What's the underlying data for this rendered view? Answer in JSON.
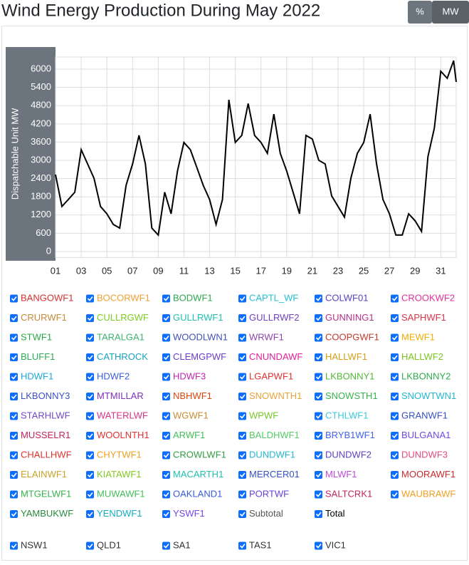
{
  "chart_data": {
    "type": "line",
    "title": "Wind Energy Production During May 2022",
    "toggle": [
      "%",
      "MW"
    ],
    "active_toggle": 1,
    "y_label": "Dispatchable Unit MW",
    "x": [
      1,
      1.5,
      2,
      2.5,
      3,
      3.5,
      4,
      4.5,
      5,
      5.5,
      6,
      6.5,
      7,
      7.5,
      8,
      8.5,
      9,
      9.5,
      10,
      10.5,
      11,
      11.5,
      12,
      12.5,
      13,
      13.5,
      14,
      14.5,
      15,
      15.5,
      16,
      16.5,
      17,
      17.5,
      18,
      18.5,
      19,
      19.5,
      20,
      20.5,
      21,
      21.5,
      22,
      22.5,
      23,
      23.5,
      24,
      24.5,
      25,
      25.5,
      26,
      26.5,
      27,
      27.5,
      28,
      28.5,
      29,
      29.5,
      30,
      30.5,
      31,
      31.5,
      32,
      32.2
    ],
    "series": [
      {
        "name": "Total",
        "color": "#000000",
        "values": [
          2530,
          1480,
          1710,
          1950,
          3350,
          2880,
          2410,
          1480,
          1240,
          890,
          770,
          2180,
          2880,
          3820,
          2880,
          770,
          540,
          1950,
          1240,
          2650,
          3590,
          3350,
          2770,
          2180,
          1710,
          890,
          1710,
          4990,
          3590,
          3820,
          4870,
          3820,
          3590,
          3230,
          4520,
          3230,
          2650,
          1950,
          1240,
          3820,
          3700,
          3000,
          2880,
          1830,
          1480,
          1130,
          2410,
          3230,
          3590,
          4520,
          2880,
          1710,
          1240,
          540,
          540,
          1240,
          1010,
          660,
          3120,
          4060,
          5930,
          5700,
          6280,
          5580
        ]
      }
    ],
    "xlim": [
      1,
      32.2
    ],
    "xticks": [
      {
        "value": 1,
        "label": "01"
      },
      {
        "value": 3,
        "label": "03"
      },
      {
        "value": 5,
        "label": "05"
      },
      {
        "value": 7,
        "label": "07"
      },
      {
        "value": 9,
        "label": "09"
      },
      11,
      13,
      15,
      17,
      19,
      21,
      23,
      25,
      27,
      29,
      31
    ],
    "ylim": [
      -200,
      6400
    ],
    "yticks": [
      0,
      600,
      1200,
      1800,
      2400,
      3000,
      3600,
      4200,
      4800,
      5400,
      6000
    ],
    "grid": true,
    "units": [
      {
        "name": "BANGOWF1",
        "color": "#d63031"
      },
      {
        "name": "BOCORWF1",
        "color": "#f0a030"
      },
      {
        "name": "BODWF1",
        "color": "#2fa84f"
      },
      {
        "name": "CAPTL_WF",
        "color": "#22c1d6"
      },
      {
        "name": "COLWF01",
        "color": "#5b3fc4"
      },
      {
        "name": "CROOKWF2",
        "color": "#e0309a"
      },
      {
        "name": "CRURWF1",
        "color": "#c58a3a"
      },
      {
        "name": "CULLRGWF",
        "color": "#7ccc22"
      },
      {
        "name": "GULLRWF1",
        "color": "#20c0b0"
      },
      {
        "name": "GULLRWF2",
        "color": "#6f42c1"
      },
      {
        "name": "GUNNING1",
        "color": "#b5338a"
      },
      {
        "name": "SAPHWF1",
        "color": "#dc3545"
      },
      {
        "name": "STWF1",
        "color": "#28a745"
      },
      {
        "name": "TARALGA1",
        "color": "#3cb371"
      },
      {
        "name": "WOODLWN1",
        "color": "#3f51b5"
      },
      {
        "name": "WRWF1",
        "color": "#8e44ad"
      },
      {
        "name": "COOPGWF1",
        "color": "#c0392b"
      },
      {
        "name": "MEWF1",
        "color": "#f0ad00"
      },
      {
        "name": "BLUFF1",
        "color": "#2eaa55"
      },
      {
        "name": "CATHROCK",
        "color": "#17a2b8"
      },
      {
        "name": "CLEMGPWF",
        "color": "#6a3dc8"
      },
      {
        "name": "CNUNDAWF",
        "color": "#e0209a"
      },
      {
        "name": "HALLWF1",
        "color": "#d4a017"
      },
      {
        "name": "HALLWF2",
        "color": "#7cc41e"
      },
      {
        "name": "HDWF1",
        "color": "#1ba8d6"
      },
      {
        "name": "HDWF2",
        "color": "#3b5bdb"
      },
      {
        "name": "HDWF3",
        "color": "#c026b0"
      },
      {
        "name": "LGAPWF1",
        "color": "#e03131"
      },
      {
        "name": "LKBONNY1",
        "color": "#51b836"
      },
      {
        "name": "LKBONNY2",
        "color": "#2fa84f"
      },
      {
        "name": "LKBONNY3",
        "color": "#3b4fc4"
      },
      {
        "name": "MTMILLAR",
        "color": "#7b2fbe"
      },
      {
        "name": "NBHWF1",
        "color": "#d9480f"
      },
      {
        "name": "SNOWNTH1",
        "color": "#e8a33d"
      },
      {
        "name": "SNOWSTH1",
        "color": "#37b24d"
      },
      {
        "name": "SNOWTWN1",
        "color": "#22b8cf"
      },
      {
        "name": "STARHLWF",
        "color": "#7048c8"
      },
      {
        "name": "WATERLWF",
        "color": "#d63384"
      },
      {
        "name": "WGWF1",
        "color": "#cc8a2e"
      },
      {
        "name": "WPWF",
        "color": "#74c82a"
      },
      {
        "name": "CTHLWF1",
        "color": "#3bc9db"
      },
      {
        "name": "GRANWF1",
        "color": "#364fc7"
      },
      {
        "name": "MUSSELR1",
        "color": "#c2255c"
      },
      {
        "name": "WOOLNTH1",
        "color": "#e03131"
      },
      {
        "name": "ARWF1",
        "color": "#40c057"
      },
      {
        "name": "BALDHWF1",
        "color": "#51cf66"
      },
      {
        "name": "BRYB1WF1",
        "color": "#4263eb"
      },
      {
        "name": "BULGANA1",
        "color": "#7048e8"
      },
      {
        "name": "CHALLHWF",
        "color": "#e03131"
      },
      {
        "name": "CHYTWF1",
        "color": "#f0a020"
      },
      {
        "name": "CROWLWF1",
        "color": "#2f9e44"
      },
      {
        "name": "DUNDWF1",
        "color": "#22b8cf"
      },
      {
        "name": "DUNDWF2",
        "color": "#5f3dc4"
      },
      {
        "name": "DUNDWF3",
        "color": "#e64980"
      },
      {
        "name": "ELAINWF1",
        "color": "#c9a227"
      },
      {
        "name": "KIATAWF1",
        "color": "#82c91e"
      },
      {
        "name": "MACARTH1",
        "color": "#20c0b0"
      },
      {
        "name": "MERCER01",
        "color": "#364fc7"
      },
      {
        "name": "MLWF1",
        "color": "#be4bdb"
      },
      {
        "name": "MOORAWF1",
        "color": "#c92a2a"
      },
      {
        "name": "MTGELWF1",
        "color": "#37b24d"
      },
      {
        "name": "MUWAWF1",
        "color": "#40c057"
      },
      {
        "name": "OAKLAND1",
        "color": "#3b5bdb"
      },
      {
        "name": "PORTWF",
        "color": "#6741d9"
      },
      {
        "name": "SALTCRK1",
        "color": "#c2255c"
      },
      {
        "name": "WAUBRAWF",
        "color": "#f0a020"
      },
      {
        "name": "YAMBUKWF",
        "color": "#2b8a3e"
      },
      {
        "name": "YENDWF1",
        "color": "#15aabf"
      },
      {
        "name": "YSWF1",
        "color": "#7048e8"
      },
      {
        "name": "Subtotal",
        "color": "#555555"
      },
      {
        "name": "Total",
        "color": "#000000"
      }
    ],
    "regions": [
      {
        "name": "NSW1",
        "color": "#333333"
      },
      {
        "name": "QLD1",
        "color": "#333333"
      },
      {
        "name": "SA1",
        "color": "#333333"
      },
      {
        "name": "TAS1",
        "color": "#333333"
      },
      {
        "name": "VIC1",
        "color": "#333333"
      }
    ]
  }
}
